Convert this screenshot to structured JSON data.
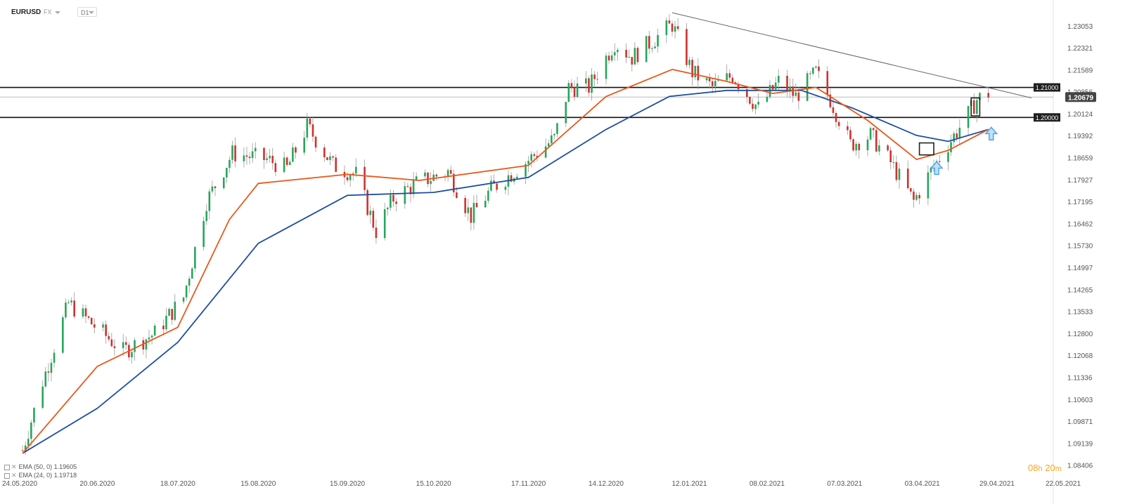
{
  "toolbar": {
    "symbol": "EURUSD",
    "market": "FX",
    "timeframe": "D1"
  },
  "timer": {
    "hours": "08",
    "h_unit": "h",
    "minutes": "20",
    "m_unit": "m"
  },
  "legend": [
    {
      "label": "EMA (50, 0) 1.19605",
      "color": "#1e4fa0"
    },
    {
      "label": "EMA (24, 0) 1.19718",
      "color": "#e8581b"
    }
  ],
  "colors": {
    "up_candle": "#26a65b",
    "down_candle": "#d0312d",
    "ema50": "#1e4fa0",
    "ema24": "#e8581b",
    "horizontal_line": "#111111",
    "trendline": "#666666",
    "arrow": "#4aa3e6",
    "price_label_bg": "#444444"
  },
  "chart_data": {
    "type": "candlestick",
    "symbol": "EURUSD",
    "timeframe": "D1",
    "y_axis_ticks": [
      "1.23053",
      "1.22321",
      "1.21589",
      "1.20856",
      "1.20124",
      "1.19392",
      "1.18659",
      "1.17927",
      "1.17195",
      "1.16462",
      "1.15730",
      "1.14997",
      "1.14265",
      "1.13533",
      "1.12800",
      "1.12068",
      "1.11336",
      "1.10603",
      "1.09871",
      "1.09139",
      "1.08406"
    ],
    "ylim": [
      1.0828,
      1.234
    ],
    "x_axis_ticks": [
      "24.05.2020",
      "20.06.2020",
      "18.07.2020",
      "15.08.2020",
      "15.09.2020",
      "15.10.2020",
      "17.11.2020",
      "14.12.2020",
      "12.01.2021",
      "08.02.2021",
      "07.03.2021",
      "03.04.2021",
      "29.04.2021",
      "22.05.2021"
    ],
    "current_price": "1.20679",
    "levels": [
      {
        "label": "1.21000",
        "value": 1.21
      },
      {
        "label": "1.20000",
        "value": 1.2
      }
    ],
    "trendline": {
      "from": {
        "date": "2021-01-06",
        "price": 1.2349
      },
      "to": {
        "date": "2021-05-11",
        "price": 1.2065
      }
    },
    "price_path": [
      [
        "2020-05-25",
        1.089
      ],
      [
        "2020-06-01",
        1.112
      ],
      [
        "2020-06-10",
        1.138
      ],
      [
        "2020-06-22",
        1.128
      ],
      [
        "2020-06-29",
        1.122
      ],
      [
        "2020-07-10",
        1.128
      ],
      [
        "2020-07-20",
        1.14
      ],
      [
        "2020-07-28",
        1.172
      ],
      [
        "2020-08-06",
        1.188
      ],
      [
        "2020-08-18",
        1.186
      ],
      [
        "2020-08-25",
        1.183
      ],
      [
        "2020-09-01",
        1.197
      ],
      [
        "2020-09-10",
        1.184
      ],
      [
        "2020-09-18",
        1.181
      ],
      [
        "2020-09-25",
        1.162
      ],
      [
        "2020-10-01",
        1.173
      ],
      [
        "2020-10-09",
        1.178
      ],
      [
        "2020-10-20",
        1.182
      ],
      [
        "2020-10-28",
        1.167
      ],
      [
        "2020-11-04",
        1.176
      ],
      [
        "2020-11-16",
        1.185
      ],
      [
        "2020-11-26",
        1.193
      ],
      [
        "2020-12-01",
        1.21
      ],
      [
        "2020-12-08",
        1.21
      ],
      [
        "2020-12-17",
        1.225
      ],
      [
        "2020-12-23",
        1.22
      ],
      [
        "2021-01-06",
        1.231
      ],
      [
        "2021-01-13",
        1.215
      ],
      [
        "2021-01-20",
        1.21
      ],
      [
        "2021-01-27",
        1.214
      ],
      [
        "2021-02-05",
        1.203
      ],
      [
        "2021-02-12",
        1.212
      ],
      [
        "2021-02-18",
        1.207
      ],
      [
        "2021-02-25",
        1.215
      ],
      [
        "2021-03-02",
        1.206
      ],
      [
        "2021-03-09",
        1.191
      ],
      [
        "2021-03-16",
        1.194
      ],
      [
        "2021-03-23",
        1.185
      ],
      [
        "2021-03-31",
        1.172
      ],
      [
        "2021-04-06",
        1.182
      ],
      [
        "2021-04-12",
        1.191
      ],
      [
        "2021-04-19",
        1.201
      ],
      [
        "2021-04-22",
        1.206
      ],
      [
        "2021-04-26",
        1.208
      ]
    ],
    "ema50_path": [
      [
        "2020-05-25",
        1.088
      ],
      [
        "2020-06-20",
        1.103
      ],
      [
        "2020-07-18",
        1.125
      ],
      [
        "2020-08-15",
        1.158
      ],
      [
        "2020-09-15",
        1.174
      ],
      [
        "2020-10-15",
        1.175
      ],
      [
        "2020-11-17",
        1.18
      ],
      [
        "2020-12-14",
        1.196
      ],
      [
        "2021-01-05",
        1.207
      ],
      [
        "2021-01-25",
        1.209
      ],
      [
        "2021-02-20",
        1.209
      ],
      [
        "2021-03-10",
        1.203
      ],
      [
        "2021-04-01",
        1.194
      ],
      [
        "2021-04-12",
        1.192
      ],
      [
        "2021-04-26",
        1.196
      ]
    ],
    "ema24_path": [
      [
        "2020-05-25",
        1.088
      ],
      [
        "2020-06-20",
        1.117
      ],
      [
        "2020-07-18",
        1.13
      ],
      [
        "2020-08-05",
        1.166
      ],
      [
        "2020-08-15",
        1.178
      ],
      [
        "2020-09-15",
        1.181
      ],
      [
        "2020-10-10",
        1.179
      ],
      [
        "2020-11-17",
        1.184
      ],
      [
        "2020-12-14",
        1.207
      ],
      [
        "2021-01-06",
        1.216
      ],
      [
        "2021-01-25",
        1.212
      ],
      [
        "2021-02-10",
        1.208
      ],
      [
        "2021-02-25",
        1.21
      ],
      [
        "2021-03-15",
        1.199
      ],
      [
        "2021-04-01",
        1.186
      ],
      [
        "2021-04-12",
        1.189
      ],
      [
        "2021-04-26",
        1.196
      ]
    ],
    "annotations": [
      {
        "type": "box",
        "from": "2021-04-02",
        "to": "2021-04-07",
        "low": 1.1875,
        "high": 1.1915
      },
      {
        "type": "box",
        "from": "2021-04-20",
        "to": "2021-04-23",
        "low": 1.2005,
        "high": 1.2065
      },
      {
        "type": "arrow-up",
        "date": "2021-04-08",
        "price": 1.1852
      },
      {
        "type": "arrow-up",
        "date": "2021-04-27",
        "price": 1.1967
      }
    ]
  }
}
